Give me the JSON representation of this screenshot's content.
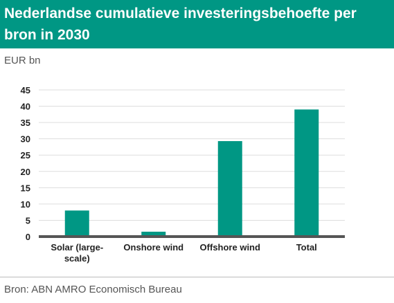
{
  "header": {
    "title": "Nederlandse cumulatieve investeringsbehoefte per bron in 2030"
  },
  "unit_label": "EUR bn",
  "source": "Bron: ABN AMRO Economisch Bureau",
  "colors": {
    "accent": "#009784",
    "bar": "#009784",
    "axis": "#555555",
    "grid": "#dddddd"
  },
  "chart_data": {
    "type": "bar",
    "categories": [
      "Solar (large-scale)",
      "Onshore wind",
      "Offshore wind",
      "Total"
    ],
    "category_lines": [
      [
        "Solar (large-",
        "scale)"
      ],
      [
        "Onshore wind"
      ],
      [
        "Offshore wind"
      ],
      [
        "Total"
      ]
    ],
    "values": [
      8,
      1.5,
      29.3,
      39
    ],
    "ylim": [
      0,
      45
    ],
    "yticks": [
      0,
      5,
      10,
      15,
      20,
      25,
      30,
      35,
      40,
      45
    ],
    "grid": true
  }
}
